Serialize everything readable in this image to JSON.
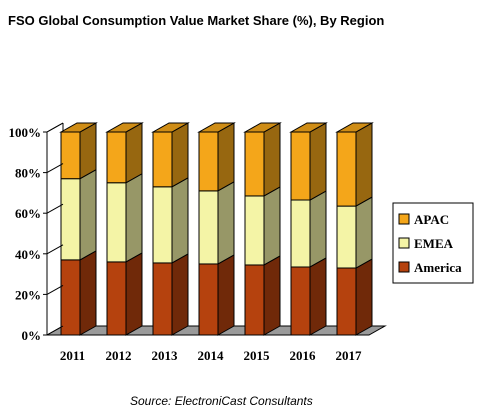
{
  "chart_data": {
    "type": "bar",
    "stacked": true,
    "percent_stacked": true,
    "three_d": true,
    "title": "FSO Global Consumption Value Market Share (%), By Region",
    "source": "Source: ElectroniCast Consultants",
    "categories": [
      "2011",
      "2012",
      "2013",
      "2014",
      "2015",
      "2016",
      "2017"
    ],
    "series": [
      {
        "name": "America",
        "color": "#b5420e",
        "values": [
          37,
          36,
          35.5,
          35,
          34.5,
          33.5,
          33
        ]
      },
      {
        "name": "EMEA",
        "color": "#f4f4a6",
        "values": [
          40,
          39,
          37.5,
          36,
          34,
          33,
          30.5
        ]
      },
      {
        "name": "APAC",
        "color": "#f4a61a",
        "values": [
          23,
          25,
          27,
          29,
          31.5,
          33.5,
          36.5
        ]
      }
    ],
    "legend_order": [
      "APAC",
      "EMEA",
      "America"
    ],
    "ylim": [
      0,
      100
    ],
    "yticks": [
      "0%",
      "20%",
      "40%",
      "60%",
      "80%",
      "100%"
    ],
    "legend_position": "right",
    "grid": false
  }
}
